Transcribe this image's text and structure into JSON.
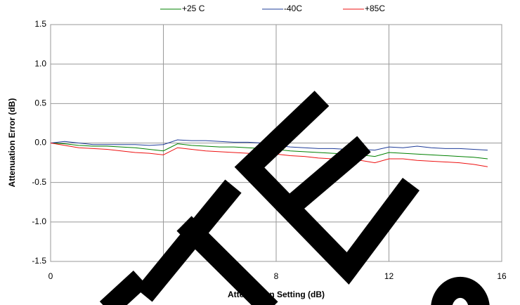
{
  "chart_data": {
    "type": "line",
    "x": [
      0,
      0.5,
      1,
      1.5,
      2,
      2.5,
      3,
      3.5,
      4,
      4.5,
      5,
      5.5,
      6,
      6.5,
      7,
      7.5,
      8,
      8.5,
      9,
      9.5,
      10,
      10.5,
      11,
      11.5,
      12,
      12.5,
      13,
      13.5,
      14,
      14.5,
      15,
      15.5
    ],
    "series": [
      {
        "name": "+25 C",
        "color": "#008000",
        "values": [
          0,
          -0.01,
          -0.03,
          -0.04,
          -0.04,
          -0.05,
          -0.06,
          -0.08,
          -0.1,
          -0.01,
          -0.03,
          -0.04,
          -0.05,
          -0.05,
          -0.06,
          -0.07,
          -0.08,
          -0.1,
          -0.11,
          -0.12,
          -0.13,
          -0.14,
          -0.15,
          -0.17,
          -0.12,
          -0.13,
          -0.14,
          -0.15,
          -0.16,
          -0.17,
          -0.18,
          -0.2
        ]
      },
      {
        "name": "-40C",
        "color": "#1f3c99",
        "values": [
          0,
          0.02,
          0,
          -0.02,
          -0.02,
          -0.02,
          -0.02,
          -0.03,
          -0.02,
          0.04,
          0.03,
          0.03,
          0.02,
          0.01,
          0.01,
          0,
          -0.03,
          -0.05,
          -0.06,
          -0.07,
          -0.07,
          -0.08,
          -0.08,
          -0.09,
          -0.05,
          -0.06,
          -0.04,
          -0.06,
          -0.07,
          -0.07,
          -0.08,
          -0.09
        ]
      },
      {
        "name": "+85C",
        "color": "#ee1111",
        "values": [
          0,
          -0.03,
          -0.06,
          -0.07,
          -0.08,
          -0.1,
          -0.12,
          -0.13,
          -0.15,
          -0.06,
          -0.08,
          -0.1,
          -0.11,
          -0.12,
          -0.13,
          -0.14,
          -0.14,
          -0.16,
          -0.17,
          -0.19,
          -0.2,
          -0.21,
          -0.22,
          -0.25,
          -0.2,
          -0.2,
          -0.22,
          -0.23,
          -0.24,
          -0.25,
          -0.27,
          -0.3
        ]
      }
    ],
    "x_label": "Attenuation Setting (dB)",
    "y_label": "Attenuation Error (dB)",
    "xlim": [
      0,
      16
    ],
    "xticks": [
      0,
      4,
      8,
      12,
      16
    ],
    "ylim": [
      -1.5,
      1.5
    ],
    "yticks": [
      -1.5,
      {
        "value": -1,
        "label": "-1.0"
      },
      -0.5,
      {
        "value": 0,
        "label": "0.0"
      },
      0.5,
      {
        "value": 1,
        "label": "1.0"
      },
      1.5
    ],
    "grid": true,
    "legend": "top"
  }
}
